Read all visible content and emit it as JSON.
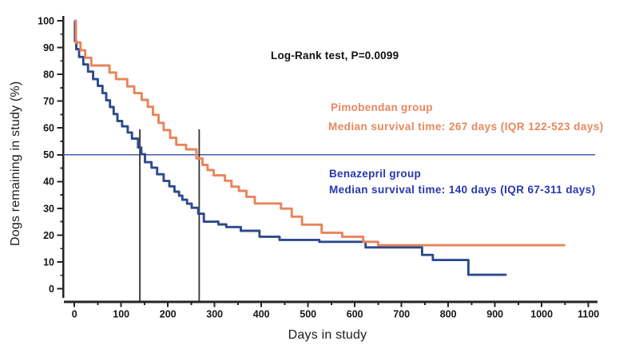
{
  "page": {
    "background": "#ffffff"
  },
  "chart_data": {
    "type": "line",
    "chart_kind": "kaplan_meier_step_survival",
    "title": "",
    "xlabel": "Days in study",
    "ylabel": "Dogs remaining in study (%)",
    "xlim": [
      0,
      1100
    ],
    "ylim": [
      0,
      100
    ],
    "xticks": [
      0,
      100,
      200,
      300,
      400,
      500,
      600,
      700,
      800,
      900,
      1000,
      1100
    ],
    "yticks": [
      0,
      10,
      20,
      30,
      40,
      50,
      60,
      70,
      80,
      90,
      100
    ],
    "minor_x_step": 50,
    "minor_y_step": 5,
    "grid": false,
    "legend_position": "annotations-inside-plot",
    "annotations": {
      "log_rank": "Log-Rank test, P=0.0099",
      "pimobendan_title": "Pimobendan group",
      "pimobendan_median": "Median survival time: 267 days (IQR 122-523 days)",
      "benazepril_title": "Benazepril group",
      "benazepril_median": "Median survival time: 140 days (IQR 67-311 days)"
    },
    "reference_lines": {
      "horizontal_pct": 50,
      "median_marker_days": [
        140,
        267
      ],
      "median_marker_top_pct": 59.5
    },
    "colors": {
      "pimobendan": "#E8845A",
      "pimobendan_text": "#E8875D",
      "benazepril": "#2D4A8C",
      "benazepril_text": "#2A36AE",
      "fifty_pct_line": "#4D58A9",
      "marker_line": "#333333",
      "axis": "#242424",
      "tick_label": "#161616"
    },
    "series": [
      {
        "name": "Pimobendan group",
        "color_key": "pimobendan",
        "median_days": 267,
        "iqr_days": [
          122,
          523
        ],
        "end_day": 1050,
        "points": [
          [
            0,
            100
          ],
          [
            3,
            91.9
          ],
          [
            13,
            89.0
          ],
          [
            23,
            86.2
          ],
          [
            36,
            83.3
          ],
          [
            75,
            80.7
          ],
          [
            89,
            78.2
          ],
          [
            113,
            75.5
          ],
          [
            128,
            73.0
          ],
          [
            144,
            70.5
          ],
          [
            157,
            67.9
          ],
          [
            168,
            64.9
          ],
          [
            180,
            61.9
          ],
          [
            191,
            59.2
          ],
          [
            205,
            56.3
          ],
          [
            218,
            53.7
          ],
          [
            239,
            52.0
          ],
          [
            261,
            48.6
          ],
          [
            274,
            46.2
          ],
          [
            285,
            44.3
          ],
          [
            298,
            42.3
          ],
          [
            322,
            40.3
          ],
          [
            336,
            38.1
          ],
          [
            352,
            36.5
          ],
          [
            368,
            34.3
          ],
          [
            386,
            31.8
          ],
          [
            442,
            29.9
          ],
          [
            465,
            26.9
          ],
          [
            487,
            23.9
          ],
          [
            529,
            20.9
          ],
          [
            573,
            19.4
          ],
          [
            618,
            17.5
          ],
          [
            650,
            16.2
          ]
        ]
      },
      {
        "name": "Benazepril group",
        "color_key": "benazepril",
        "median_days": 140,
        "iqr_days": [
          67,
          311
        ],
        "end_day": 925,
        "points": [
          [
            0,
            100
          ],
          [
            1,
            92.4
          ],
          [
            4,
            89.4
          ],
          [
            10,
            86.5
          ],
          [
            19,
            83.7
          ],
          [
            29,
            81.0
          ],
          [
            40,
            78.2
          ],
          [
            50,
            75.7
          ],
          [
            60,
            73.0
          ],
          [
            68,
            70.3
          ],
          [
            76,
            67.8
          ],
          [
            84,
            65.2
          ],
          [
            92,
            62.6
          ],
          [
            102,
            60.6
          ],
          [
            114,
            58.3
          ],
          [
            123,
            56.0
          ],
          [
            136,
            52.7
          ],
          [
            143,
            50.2
          ],
          [
            151,
            47.2
          ],
          [
            165,
            45.2
          ],
          [
            177,
            42.7
          ],
          [
            191,
            40.2
          ],
          [
            203,
            38.2
          ],
          [
            214,
            36.2
          ],
          [
            224,
            34.7
          ],
          [
            231,
            33.2
          ],
          [
            241,
            31.7
          ],
          [
            251,
            30.2
          ],
          [
            265,
            28.0
          ],
          [
            277,
            25.0
          ],
          [
            308,
            24.0
          ],
          [
            325,
            23.0
          ],
          [
            356,
            21.6
          ],
          [
            396,
            19.4
          ],
          [
            439,
            18.2
          ],
          [
            524,
            17.5
          ],
          [
            623,
            15.4
          ],
          [
            744,
            12.6
          ],
          [
            767,
            10.7
          ],
          [
            843,
            5.2
          ]
        ]
      }
    ]
  }
}
